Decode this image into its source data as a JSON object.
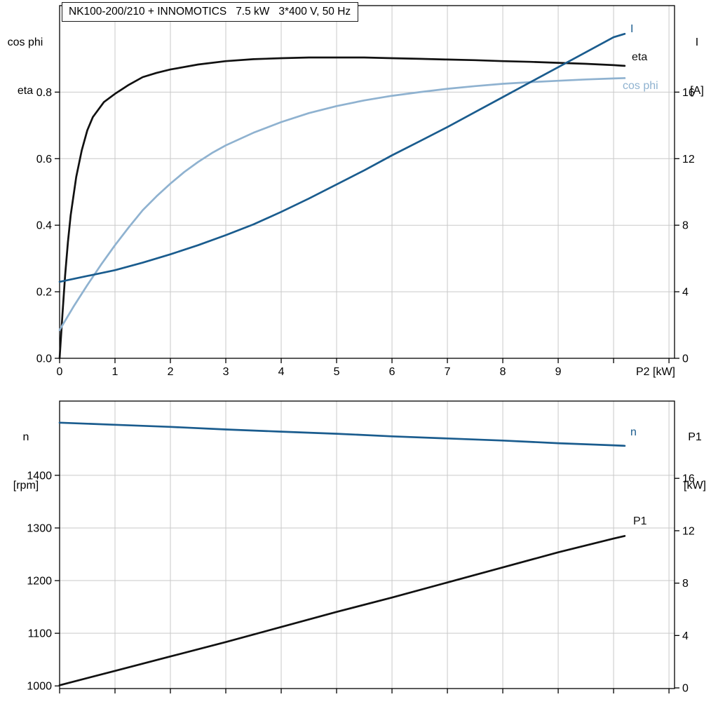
{
  "theme": {
    "background": "#ffffff",
    "grid_color": "#c9c9c9",
    "axis_color": "#000000",
    "text_color": "#000000",
    "dark_blue": "#1a5c8e",
    "light_blue": "#8fb2d0",
    "black": "#111111"
  },
  "chart_data": [
    {
      "type": "line",
      "title": "NK100-200/210 + INNOMOTICS   7.5 kW   3*400 V, 50 Hz",
      "legend_position": "curve-end-labels-right",
      "grid": true,
      "x_axis": {
        "label": "P2 [kW]",
        "range": [
          0,
          11.1
        ],
        "tick_values": [
          0,
          1,
          2,
          3,
          4,
          5,
          6,
          7,
          8,
          9,
          10,
          11
        ],
        "tick_labels": [
          "0",
          "1",
          "2",
          "3",
          "4",
          "5",
          "6",
          "7",
          "8",
          "9",
          "",
          ""
        ],
        "grid_values": [
          1,
          2,
          3,
          4,
          5,
          6,
          7,
          8,
          9,
          10,
          11
        ]
      },
      "y_left": {
        "labels": [
          "cos phi",
          "eta"
        ],
        "range": [
          0,
          1.06
        ],
        "tick_values": [
          0,
          0.2,
          0.4,
          0.6,
          0.8
        ],
        "tick_labels": [
          "0.0",
          "0.2",
          "0.4",
          "0.6",
          "0.8"
        ],
        "grid_values": [
          0.2,
          0.4,
          0.6,
          0.8
        ]
      },
      "y_right": {
        "labels": [
          "I",
          "[A]"
        ],
        "range": [
          0,
          21.2
        ],
        "tick_values": [
          0,
          4,
          8,
          12,
          16
        ],
        "tick_labels": [
          "0",
          "4",
          "8",
          "12",
          "16"
        ]
      },
      "series": [
        {
          "name": "eta",
          "axis": "left",
          "color": "#111111",
          "x": [
            0,
            0.05,
            0.1,
            0.15,
            0.2,
            0.3,
            0.4,
            0.5,
            0.6,
            0.8,
            1,
            1.25,
            1.5,
            1.75,
            2,
            2.5,
            3,
            3.5,
            4,
            4.5,
            5,
            5.5,
            6,
            6.5,
            7,
            7.5,
            8,
            8.5,
            9,
            9.5,
            10,
            10.2
          ],
          "values": [
            0,
            0.13,
            0.25,
            0.35,
            0.43,
            0.545,
            0.625,
            0.685,
            0.725,
            0.77,
            0.795,
            0.822,
            0.845,
            0.858,
            0.868,
            0.883,
            0.893,
            0.899,
            0.902,
            0.904,
            0.904,
            0.904,
            0.902,
            0.9,
            0.898,
            0.896,
            0.893,
            0.891,
            0.888,
            0.885,
            0.881,
            0.879
          ]
        },
        {
          "name": "cos phi",
          "axis": "left",
          "color": "#8fb2d0",
          "x": [
            0,
            0.25,
            0.5,
            0.75,
            1,
            1.25,
            1.5,
            1.75,
            2,
            2.25,
            2.5,
            2.75,
            3,
            3.5,
            4,
            4.5,
            5,
            5.5,
            6,
            6.5,
            7,
            7.5,
            8,
            8.5,
            9,
            9.5,
            10,
            10.2
          ],
          "values": [
            0.085,
            0.155,
            0.22,
            0.282,
            0.34,
            0.394,
            0.445,
            0.487,
            0.525,
            0.56,
            0.59,
            0.617,
            0.64,
            0.678,
            0.71,
            0.737,
            0.758,
            0.775,
            0.789,
            0.8,
            0.81,
            0.818,
            0.825,
            0.83,
            0.834,
            0.838,
            0.841,
            0.842
          ]
        },
        {
          "name": "I",
          "axis": "right",
          "color": "#1a5c8e",
          "x": [
            0,
            0.5,
            1,
            1.5,
            2,
            2.5,
            3,
            3.5,
            4,
            4.5,
            5,
            5.5,
            6,
            6.5,
            7,
            7.5,
            8,
            8.5,
            9,
            9.5,
            10,
            10.2
          ],
          "values": [
            4.6,
            4.95,
            5.3,
            5.75,
            6.25,
            6.8,
            7.4,
            8.05,
            8.8,
            9.6,
            10.45,
            11.3,
            12.2,
            13.05,
            13.9,
            14.8,
            15.7,
            16.6,
            17.5,
            18.4,
            19.3,
            19.5
          ]
        }
      ]
    },
    {
      "type": "line",
      "title": "",
      "legend_position": "curve-end-labels-right",
      "grid": true,
      "x_axis": {
        "label": "",
        "range": [
          0,
          11.1
        ],
        "tick_values": [
          0,
          1,
          2,
          3,
          4,
          5,
          6,
          7,
          8,
          9,
          10,
          11
        ],
        "tick_labels": [
          "",
          "",
          "",
          "",
          "",
          "",
          "",
          "",
          "",
          "",
          "",
          ""
        ],
        "grid_values": [
          1,
          2,
          3,
          4,
          5,
          6,
          7,
          8,
          9,
          10,
          11
        ]
      },
      "y_left": {
        "labels": [
          "n",
          "[rpm]"
        ],
        "range": [
          995,
          1541
        ],
        "tick_values": [
          1000,
          1100,
          1200,
          1300,
          1400
        ],
        "tick_labels": [
          "1000",
          "1100",
          "1200",
          "1300",
          "1400"
        ],
        "grid_values": [
          1100,
          1200,
          1300,
          1400
        ]
      },
      "y_right": {
        "labels": [
          "P1",
          "[kW]"
        ],
        "range": [
          -0.05,
          21.9
        ],
        "tick_values": [
          0,
          4,
          8,
          12,
          16
        ],
        "tick_labels": [
          "0",
          "4",
          "8",
          "12",
          "16"
        ]
      },
      "series": [
        {
          "name": "n",
          "axis": "left",
          "color": "#1a5c8e",
          "x": [
            0,
            1,
            2,
            3,
            4,
            5,
            6,
            7,
            8,
            9,
            10,
            10.2
          ],
          "values": [
            1500,
            1496,
            1492,
            1487,
            1483,
            1479,
            1474,
            1470,
            1466,
            1461,
            1457,
            1456
          ]
        },
        {
          "name": "P1",
          "axis": "right",
          "color": "#111111",
          "x": [
            0,
            1,
            2,
            3,
            4,
            5,
            6,
            7,
            8,
            9,
            10,
            10.2
          ],
          "values": [
            0.2,
            1.3,
            2.4,
            3.5,
            4.65,
            5.8,
            6.9,
            8.05,
            9.2,
            10.35,
            11.4,
            11.6
          ]
        }
      ]
    }
  ]
}
